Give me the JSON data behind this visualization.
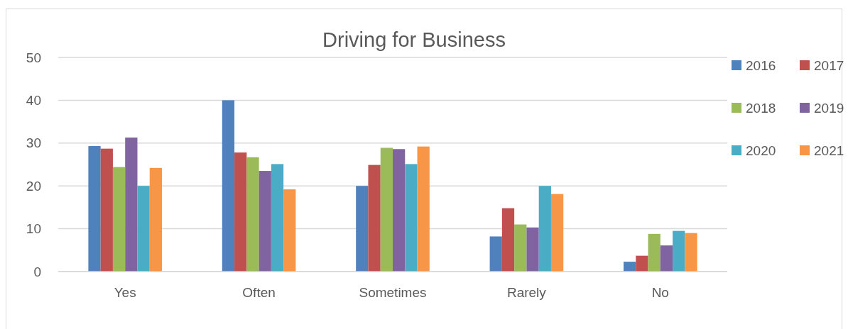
{
  "chart_data": {
    "type": "bar",
    "title": "Driving for Business",
    "categories": [
      "Yes",
      "Often",
      "Sometimes",
      "Rarely",
      "No"
    ],
    "series": [
      {
        "name": "2016",
        "color": "#4f81bd",
        "values": [
          29.3,
          40,
          20,
          8.2,
          2.3
        ]
      },
      {
        "name": "2017",
        "color": "#c0504d",
        "values": [
          28.7,
          27.8,
          24.9,
          14.8,
          3.7
        ]
      },
      {
        "name": "2018",
        "color": "#9bbb59",
        "values": [
          24.4,
          26.7,
          28.9,
          11.0,
          8.8
        ]
      },
      {
        "name": "2019",
        "color": "#8064a2",
        "values": [
          31.3,
          23.5,
          28.6,
          10.3,
          6.1
        ]
      },
      {
        "name": "2020",
        "color": "#4bacc6",
        "values": [
          20,
          25.1,
          25.1,
          20,
          9.5
        ]
      },
      {
        "name": "2021",
        "color": "#f79646",
        "values": [
          24.2,
          19.2,
          29.2,
          18.1,
          9.0
        ]
      }
    ],
    "ylim": [
      0,
      50
    ],
    "yticks": [
      0,
      10,
      20,
      30,
      40,
      50
    ],
    "grid": "y",
    "legend": "right"
  }
}
